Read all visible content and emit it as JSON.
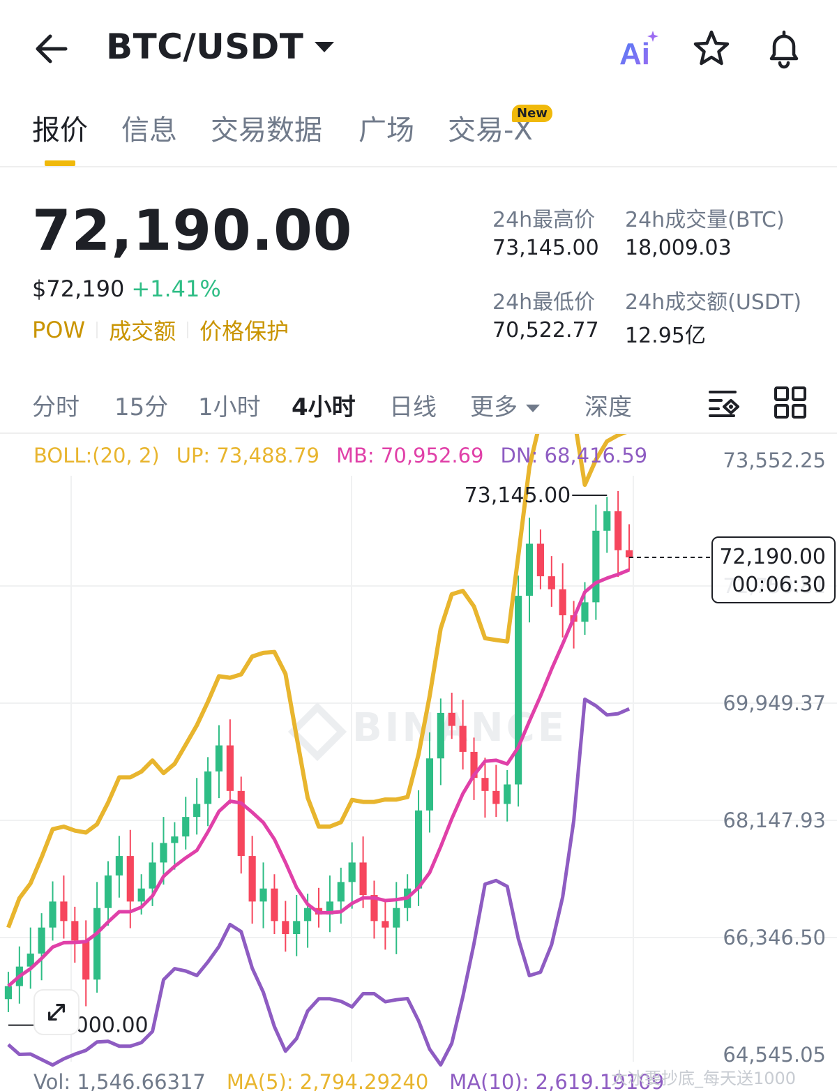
{
  "header": {
    "title": "BTC/USDT",
    "ai_label": "Ai"
  },
  "tabs": [
    {
      "label": "报价",
      "active": true
    },
    {
      "label": "信息"
    },
    {
      "label": "交易数据"
    },
    {
      "label": "广场"
    },
    {
      "label": "交易-X",
      "badge": "New"
    }
  ],
  "ticker": {
    "price": "72,190.00",
    "usd_price": "$72,190",
    "change": "+1.41%",
    "tags": [
      "POW",
      "成交额",
      "价格保护"
    ],
    "stats": [
      {
        "label": "24h最高价",
        "value": "73,145.00"
      },
      {
        "label": "24h成交量(BTC)",
        "value": "18,009.03"
      },
      {
        "label": "24h最低价",
        "value": "70,522.77"
      },
      {
        "label": "24h成交额(USDT)",
        "value": "12.95亿"
      }
    ]
  },
  "intervals": [
    "分时",
    "15分",
    "1小时",
    "4小时",
    "日线",
    "更多",
    "深度"
  ],
  "active_interval": "4小时",
  "chart": {
    "boll": {
      "params": "BOLL:(20, 2)",
      "up": "UP: 73,488.79",
      "mb": "MB: 70,952.69",
      "dn": "DN: 68,416.59"
    },
    "axis_labels": [
      "73,552.25",
      "71,750.81",
      "69,949.37",
      "68,147.93",
      "66,346.50",
      "64,545.05"
    ],
    "high_marker": "73,145.00",
    "low_marker": "65,000.00",
    "current_price": "72,190.00",
    "countdown": "00:06:30",
    "watermark": "BINANCE",
    "vol": {
      "vol": "Vol: 1,546.66317",
      "ma5": "MA(5): 2,794.29240",
      "ma10": "MA(10): 2,619.19109"
    }
  },
  "overlay_text": "大冰要抄底_每天送1000",
  "colors": {
    "accent": "#f0b90b",
    "up": "#2ebd85",
    "down": "#f6465d",
    "boll_up": "#e8b52e",
    "boll_mb": "#e040a8",
    "boll_dn": "#8e5cc2"
  },
  "chart_data": {
    "type": "candlestick",
    "interval": "4小时",
    "ohlc_sampled_close": [
      65600,
      65900,
      66100,
      66500,
      66900,
      66600,
      66300,
      65700,
      66800,
      67300,
      67600,
      66900,
      67100,
      67500,
      67800,
      67900,
      68200,
      68400,
      68900,
      69300,
      68600,
      67600,
      66900,
      67100,
      66600,
      66400,
      66600,
      66800,
      66700,
      66900,
      67200,
      67500,
      67000,
      66600,
      66500,
      66800,
      67100,
      68300,
      69100,
      69800,
      69600,
      69200,
      68800,
      68600,
      68400,
      68700,
      71600,
      72400,
      71900,
      71700,
      71300,
      71200,
      71500,
      72600,
      72900,
      72300,
      72190
    ],
    "high": 73145.0,
    "low": 65000.0,
    "last": 72190.0,
    "ylim": [
      64545.05,
      73552.25
    ],
    "series": [
      {
        "name": "UP",
        "last": 73488.79
      },
      {
        "name": "MB",
        "last": 70952.69
      },
      {
        "name": "DN",
        "last": 68416.59
      }
    ]
  }
}
